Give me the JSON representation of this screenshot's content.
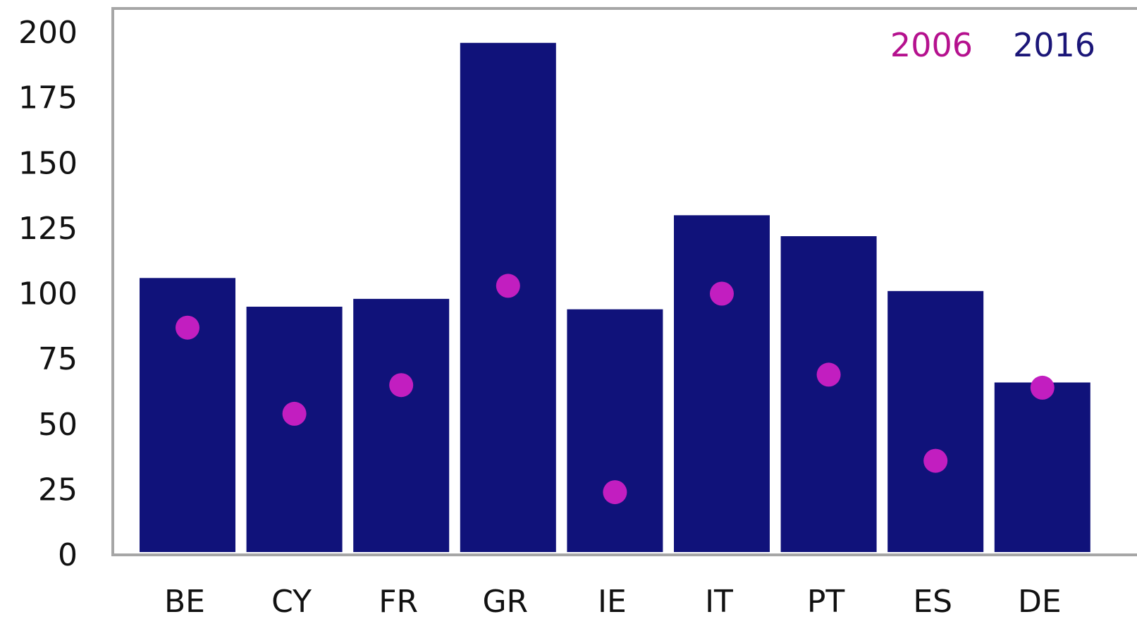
{
  "chart_data": {
    "type": "bar",
    "title": "",
    "xlabel": "",
    "ylabel": "",
    "ylim": [
      0,
      210
    ],
    "yticks": [
      "0",
      "25",
      "50",
      "75",
      "100",
      "125",
      "150",
      "175",
      "200"
    ],
    "categories": [
      "BE",
      "CY",
      "FR",
      "GR",
      "IE",
      "IT",
      "PT",
      "ES",
      "DE"
    ],
    "series": [
      {
        "name": "2016",
        "kind": "bar",
        "color": "#10127a",
        "values": [
          106,
          95,
          98,
          196,
          94,
          130,
          122,
          101,
          66
        ]
      },
      {
        "name": "2006",
        "kind": "scatter",
        "color": "#c21ec0",
        "values": [
          87,
          54,
          65,
          103,
          24,
          100,
          69,
          36,
          64
        ]
      }
    ],
    "legend": {
      "placement": "top-right",
      "items": [
        {
          "label": "2006",
          "color": "#b5118e"
        },
        {
          "label": "2016",
          "color": "#1b1678"
        }
      ]
    },
    "grid": false
  }
}
